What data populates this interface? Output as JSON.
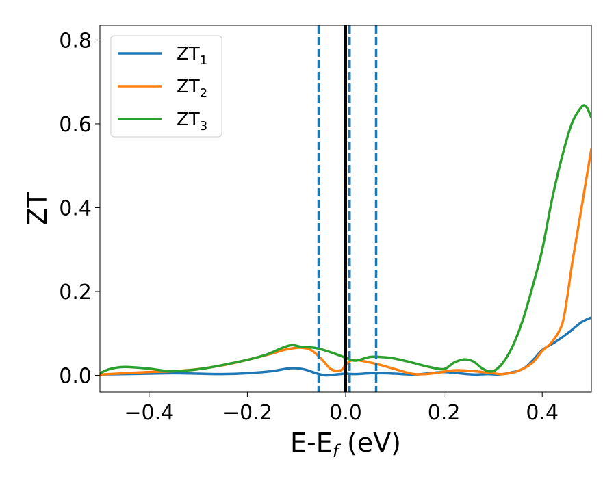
{
  "chart_data": {
    "type": "line",
    "title": "",
    "xlabel": "E-E",
    "xlabel_sub": "f",
    "xlabel_unit": " (eV)",
    "ylabel": "ZT",
    "xlim": [
      -0.5,
      0.5
    ],
    "ylim": [
      -0.04,
      0.835
    ],
    "grid": false,
    "legend_position": "top-left",
    "xticks": [
      -0.4,
      -0.2,
      0.0,
      0.2,
      0.4
    ],
    "xtick_labels": [
      "−0.4",
      "−0.2",
      "0.0",
      "0.2",
      "0.4"
    ],
    "yticks": [
      0.0,
      0.2,
      0.4,
      0.6,
      0.8
    ],
    "ytick_labels": [
      "0.0",
      "0.2",
      "0.4",
      "0.6",
      "0.8"
    ],
    "vertical_lines": [
      {
        "x": -0.055,
        "style": "dashed",
        "color": "#1f77b4"
      },
      {
        "x": 0.008,
        "style": "dashed",
        "color": "#1f77b4"
      },
      {
        "x": 0.062,
        "style": "dashed",
        "color": "#1f77b4"
      },
      {
        "x": 0.0,
        "style": "solid",
        "color": "#000000"
      }
    ],
    "series": [
      {
        "name": "ZT",
        "name_sub": "1",
        "color": "#1f77b4",
        "points": [
          [
            -0.5,
            0.002
          ],
          [
            -0.45,
            0.003
          ],
          [
            -0.4,
            0.004
          ],
          [
            -0.35,
            0.005
          ],
          [
            -0.3,
            0.004
          ],
          [
            -0.25,
            0.003
          ],
          [
            -0.2,
            0.005
          ],
          [
            -0.15,
            0.01
          ],
          [
            -0.12,
            0.016
          ],
          [
            -0.1,
            0.017
          ],
          [
            -0.08,
            0.013
          ],
          [
            -0.06,
            0.005
          ],
          [
            -0.04,
            0.0
          ],
          [
            -0.02,
            0.002
          ],
          [
            0.0,
            0.004
          ],
          [
            0.02,
            0.003
          ],
          [
            0.05,
            0.005
          ],
          [
            0.08,
            0.005
          ],
          [
            0.1,
            0.004
          ],
          [
            0.14,
            0.002
          ],
          [
            0.17,
            0.005
          ],
          [
            0.2,
            0.008
          ],
          [
            0.23,
            0.005
          ],
          [
            0.26,
            0.002
          ],
          [
            0.29,
            0.003
          ],
          [
            0.31,
            0.002
          ],
          [
            0.33,
            0.005
          ],
          [
            0.36,
            0.015
          ],
          [
            0.38,
            0.035
          ],
          [
            0.4,
            0.06
          ],
          [
            0.42,
            0.075
          ],
          [
            0.44,
            0.09
          ],
          [
            0.46,
            0.108
          ],
          [
            0.48,
            0.127
          ],
          [
            0.5,
            0.138
          ]
        ]
      },
      {
        "name": "ZT",
        "name_sub": "2",
        "color": "#ff7f0e",
        "points": [
          [
            -0.5,
            0.002
          ],
          [
            -0.45,
            0.005
          ],
          [
            -0.4,
            0.008
          ],
          [
            -0.35,
            0.01
          ],
          [
            -0.3,
            0.015
          ],
          [
            -0.25,
            0.024
          ],
          [
            -0.2,
            0.037
          ],
          [
            -0.15,
            0.052
          ],
          [
            -0.12,
            0.062
          ],
          [
            -0.09,
            0.066
          ],
          [
            -0.07,
            0.06
          ],
          [
            -0.05,
            0.04
          ],
          [
            -0.03,
            0.015
          ],
          [
            -0.01,
            0.012
          ],
          [
            0.0,
            0.025
          ],
          [
            0.01,
            0.035
          ],
          [
            0.02,
            0.037
          ],
          [
            0.04,
            0.033
          ],
          [
            0.07,
            0.025
          ],
          [
            0.1,
            0.015
          ],
          [
            0.14,
            0.003
          ],
          [
            0.18,
            0.005
          ],
          [
            0.22,
            0.012
          ],
          [
            0.26,
            0.01
          ],
          [
            0.3,
            0.005
          ],
          [
            0.32,
            0.003
          ],
          [
            0.35,
            0.01
          ],
          [
            0.38,
            0.03
          ],
          [
            0.4,
            0.058
          ],
          [
            0.42,
            0.08
          ],
          [
            0.44,
            0.12
          ],
          [
            0.45,
            0.18
          ],
          [
            0.46,
            0.26
          ],
          [
            0.47,
            0.33
          ],
          [
            0.48,
            0.4
          ],
          [
            0.49,
            0.47
          ],
          [
            0.5,
            0.54
          ]
        ]
      },
      {
        "name": "ZT",
        "name_sub": "3",
        "color": "#2ca02c",
        "points": [
          [
            -0.5,
            0.005
          ],
          [
            -0.48,
            0.015
          ],
          [
            -0.45,
            0.02
          ],
          [
            -0.4,
            0.016
          ],
          [
            -0.36,
            0.01
          ],
          [
            -0.32,
            0.012
          ],
          [
            -0.28,
            0.018
          ],
          [
            -0.24,
            0.027
          ],
          [
            -0.2,
            0.037
          ],
          [
            -0.16,
            0.05
          ],
          [
            -0.13,
            0.065
          ],
          [
            -0.11,
            0.072
          ],
          [
            -0.09,
            0.068
          ],
          [
            -0.06,
            0.065
          ],
          [
            -0.03,
            0.055
          ],
          [
            0.0,
            0.042
          ],
          [
            0.02,
            0.035
          ],
          [
            0.05,
            0.044
          ],
          [
            0.08,
            0.043
          ],
          [
            0.1,
            0.04
          ],
          [
            0.13,
            0.032
          ],
          [
            0.17,
            0.02
          ],
          [
            0.2,
            0.015
          ],
          [
            0.22,
            0.03
          ],
          [
            0.24,
            0.038
          ],
          [
            0.26,
            0.033
          ],
          [
            0.28,
            0.015
          ],
          [
            0.3,
            0.01
          ],
          [
            0.32,
            0.03
          ],
          [
            0.34,
            0.07
          ],
          [
            0.36,
            0.13
          ],
          [
            0.38,
            0.21
          ],
          [
            0.4,
            0.3
          ],
          [
            0.42,
            0.42
          ],
          [
            0.44,
            0.52
          ],
          [
            0.46,
            0.6
          ],
          [
            0.48,
            0.64
          ],
          [
            0.49,
            0.64
          ],
          [
            0.5,
            0.615
          ]
        ]
      }
    ]
  }
}
